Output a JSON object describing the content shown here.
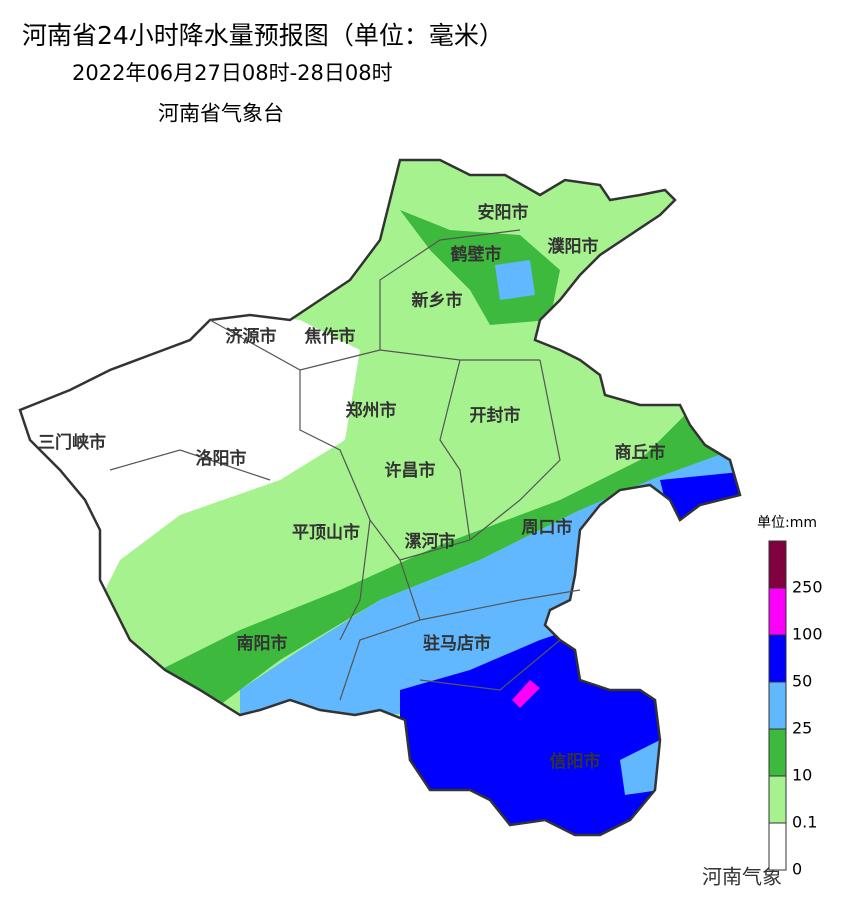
{
  "header": {
    "title": "河南省24小时降水量预报图（单位：毫米）",
    "period": "2022年06月27日08时-28日08时",
    "issuer": "河南省气象台"
  },
  "cities": [
    "安阳市",
    "鹤壁市",
    "濮阳市",
    "新乡市",
    "济源市",
    "焦作市",
    "郑州市",
    "开封市",
    "三门峡市",
    "洛阳市",
    "商丘市",
    "许昌市",
    "平顶山市",
    "漯河市",
    "周口市",
    "南阳市",
    "驻马店市",
    "信阳市"
  ],
  "legend": {
    "unit": "单位:mm",
    "breaks": [
      0,
      0.1,
      10,
      25,
      50,
      100,
      250
    ],
    "colors": [
      "#ffffff",
      "#a6f28f",
      "#3dba3d",
      "#61b8ff",
      "#0000ff",
      "#fa00fa",
      "#800040"
    ]
  },
  "watermark": "河南气象"
}
